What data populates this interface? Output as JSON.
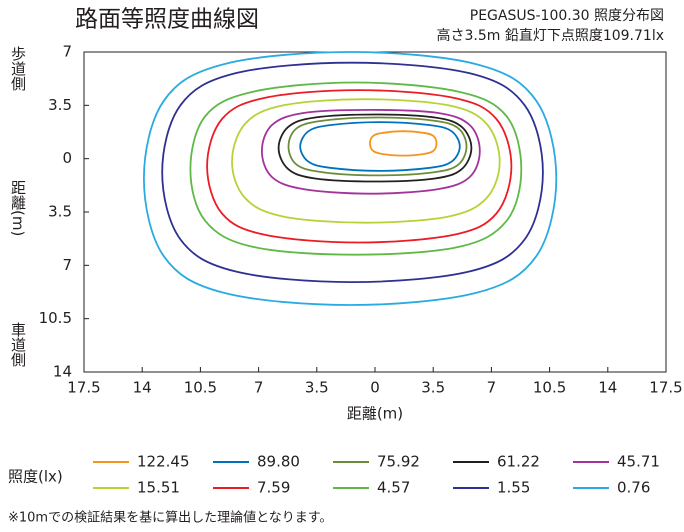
{
  "chart_data": {
    "type": "contour",
    "title": "路面等照度曲線図",
    "subtitle": [
      "PEGASUS-100.30 照度分布図",
      "高さ3.5m  鉛直灯下点照度109.71lx"
    ],
    "x_label": "距離(m)",
    "y_label": "距離(m)",
    "y_label_top": "歩道側",
    "y_label_bottom": "車道側",
    "legend_title": "照度(lx)",
    "footnote": "※10mでの検証結果を基に算出した理論値となります。",
    "xlim": [
      -17.5,
      17.5
    ],
    "ylim": [
      -14,
      7
    ],
    "xticks": [
      {
        "value": -17.5,
        "label": "17.5"
      },
      {
        "value": -14,
        "label": "14"
      },
      {
        "value": -10.5,
        "label": "10.5"
      },
      {
        "value": -7,
        "label": "7"
      },
      {
        "value": -3.5,
        "label": "3.5"
      },
      0,
      3.5,
      7,
      10.5,
      14,
      17.5
    ],
    "yticks": [
      7,
      3.5,
      0,
      {
        "value": -3.5,
        "label": "3.5"
      },
      {
        "value": -7,
        "label": "7"
      },
      {
        "value": -10.5,
        "label": "10.5"
      },
      {
        "value": -14,
        "label": "14"
      }
    ],
    "series": [
      {
        "name": "122.45",
        "color": "#f7941d",
        "x": [
          3.7,
          3.5,
          2.9,
          1.7,
          0.5,
          -0.1,
          -0.3,
          -0.1,
          0.5,
          1.7,
          2.9,
          3.5
        ],
        "y": [
          1.0,
          1.5,
          1.7,
          1.8,
          1.7,
          1.5,
          1.0,
          0.5,
          0.3,
          0.2,
          0.3,
          0.5
        ]
      },
      {
        "name": "89.80",
        "color": "#0072bc",
        "x": [
          5.1,
          4.6,
          3.3,
          0.3,
          -2.7,
          -4.0,
          -4.5,
          -4.0,
          -2.7,
          0.3,
          3.3,
          4.6
        ],
        "y": [
          0.8,
          1.8,
          2.2,
          2.4,
          2.2,
          1.8,
          0.8,
          -0.2,
          -0.6,
          -0.8,
          -0.6,
          -0.2
        ]
      },
      {
        "name": "75.92",
        "color": "#6d8c3a",
        "x": [
          5.5,
          5.0,
          3.5,
          0.2,
          -3.1,
          -4.7,
          -5.2,
          -4.7,
          -3.1,
          0.2,
          3.5,
          5.0
        ],
        "y": [
          0.8,
          2.0,
          2.5,
          2.7,
          2.5,
          2.0,
          0.8,
          -0.4,
          -0.9,
          -1.1,
          -0.9,
          -0.4
        ]
      },
      {
        "name": "61.22",
        "color": "#231f20",
        "x": [
          5.8,
          5.2,
          3.6,
          0,
          -3.6,
          -5.2,
          -5.8,
          -5.2,
          -3.6,
          0,
          3.6,
          5.2
        ],
        "y": [
          0.7,
          2.1,
          2.7,
          2.9,
          2.7,
          2.1,
          0.7,
          -0.7,
          -1.3,
          -1.5,
          -1.3,
          -0.7
        ]
      },
      {
        "name": "45.71",
        "color": "#a3329b",
        "x": [
          6.3,
          5.7,
          3.8,
          -0.3,
          -4.3,
          -6.2,
          -6.8,
          -6.2,
          -4.3,
          -0.3,
          3.8,
          5.7
        ],
        "y": [
          0.5,
          2.2,
          3.0,
          3.2,
          3.0,
          2.2,
          0.5,
          -1.2,
          -2.0,
          -2.3,
          -2.0,
          -1.2
        ]
      },
      {
        "name": "15.51",
        "color": "#b5d334",
        "x": [
          7.5,
          6.7,
          4.4,
          -0.6,
          -5.5,
          -7.8,
          -8.6,
          -7.8,
          -5.5,
          -0.6,
          4.4,
          6.7
        ],
        "y": [
          -0.2,
          2.3,
          3.5,
          3.9,
          3.5,
          2.3,
          -0.2,
          -2.6,
          -3.8,
          -4.2,
          -3.8,
          -2.6
        ]
      },
      {
        "name": "7.59",
        "color": "#ed1c24",
        "x": [
          8.2,
          7.3,
          4.7,
          -1.0,
          -6.6,
          -9.2,
          -10.1,
          -9.2,
          -6.6,
          -1.0,
          4.7,
          7.3
        ],
        "y": [
          -0.5,
          2.6,
          4.0,
          4.5,
          4.0,
          2.6,
          -0.5,
          -3.6,
          -5.0,
          -5.5,
          -5.0,
          -3.6
        ]
      },
      {
        "name": "4.57",
        "color": "#5fb946",
        "x": [
          8.8,
          7.9,
          5.0,
          -1.2,
          -7.3,
          -10.2,
          -11.1,
          -10.2,
          -7.3,
          -1.2,
          5.0,
          7.9
        ],
        "y": [
          -0.7,
          2.8,
          4.4,
          5.0,
          4.4,
          2.8,
          -0.7,
          -4.1,
          -5.8,
          -6.3,
          -5.8,
          -4.1
        ]
      },
      {
        "name": "1.55",
        "color": "#2e3192",
        "x": [
          10.1,
          9.0,
          5.7,
          -1.4,
          -8.4,
          -11.7,
          -12.8,
          -11.7,
          -8.4,
          -1.4,
          5.7,
          9.0
        ],
        "y": [
          -0.9,
          3.5,
          5.6,
          6.3,
          5.6,
          3.5,
          -0.9,
          -5.3,
          -7.4,
          -8.1,
          -7.4,
          -5.3
        ]
      },
      {
        "name": "0.76",
        "color": "#29abe2",
        "x": [
          10.9,
          9.7,
          6.1,
          -1.5,
          -9.1,
          -12.7,
          -13.9,
          -12.7,
          -9.1,
          -1.5,
          6.1,
          9.7
        ],
        "y": [
          -1.3,
          3.8,
          6.2,
          7.0,
          6.2,
          3.8,
          -1.3,
          -6.4,
          -8.8,
          -9.6,
          -8.8,
          -6.4
        ]
      }
    ]
  }
}
